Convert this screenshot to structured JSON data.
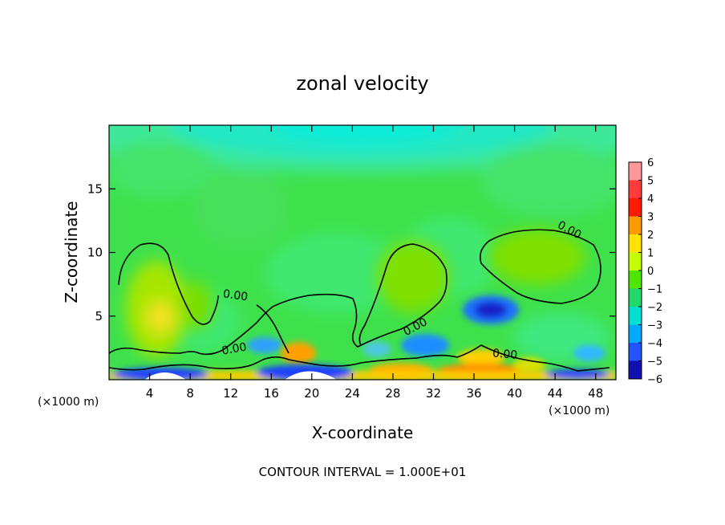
{
  "chart_data": {
    "type": "heatmap",
    "title": "zonal velocity",
    "xlabel": "X-coordinate",
    "ylabel": "Z-coordinate",
    "x_unit_left": "(×1000 m)",
    "x_unit_right": "(×1000 m)",
    "xlim": [
      0,
      50
    ],
    "ylim": [
      0,
      20
    ],
    "xticks": [
      4,
      8,
      12,
      16,
      20,
      24,
      28,
      32,
      36,
      40,
      44,
      48
    ],
    "yticks": [
      5,
      10,
      15
    ],
    "colorbar": {
      "levels": [
        6,
        5,
        4,
        3,
        2,
        1,
        0,
        -1,
        -2,
        -3,
        -4,
        -5,
        -6
      ],
      "colors": [
        "#ff9999",
        "#ff3b3b",
        "#ff1a00",
        "#ff9a00",
        "#ffe300",
        "#c6ff00",
        "#4ee600",
        "#22d86a",
        "#00e0d0",
        "#00aaff",
        "#2255ff",
        "#1010b0",
        "#7a00b0"
      ]
    },
    "contour_label": "0.00",
    "annotation": "CONTOUR INTERVAL = 1.000E+01",
    "features": [
      {
        "kind": "positive-blob",
        "x": 5,
        "z": 4.5,
        "value": 2
      },
      {
        "kind": "positive-blob",
        "x": 19.5,
        "z": 2.3,
        "value": 4
      },
      {
        "kind": "positive-blob",
        "x": 30,
        "z": 9,
        "value": 1
      },
      {
        "kind": "positive-blob",
        "x": 43,
        "z": 9,
        "value": 1
      },
      {
        "kind": "negative-blob",
        "x": 38,
        "z": 5.5,
        "value": -4
      },
      {
        "kind": "negative-blob",
        "x": 30.5,
        "z": 2.5,
        "value": -3
      },
      {
        "kind": "negative-blob",
        "x": 15,
        "z": 2.5,
        "value": -2
      },
      {
        "kind": "negative-upper",
        "x": 22,
        "z": 18.5,
        "value": -2
      }
    ]
  }
}
